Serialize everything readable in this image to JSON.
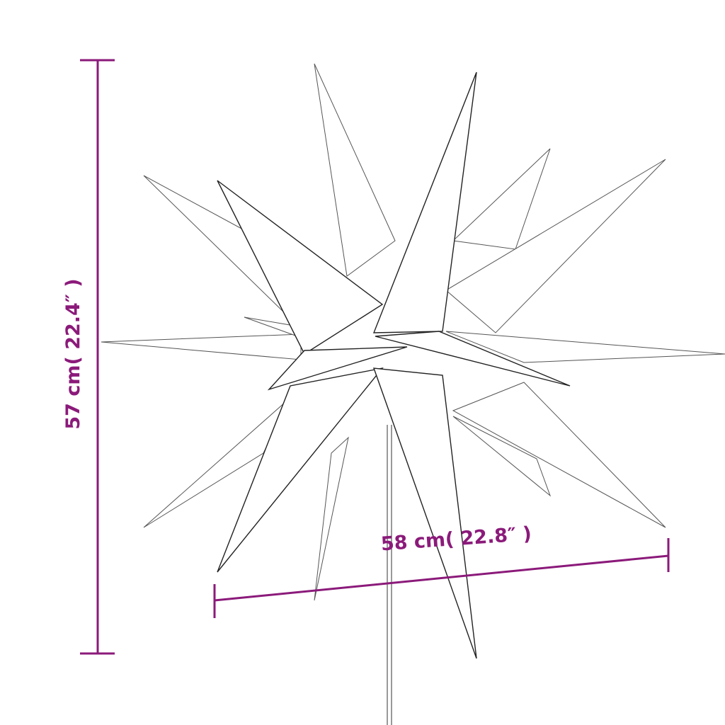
{
  "dimensions": {
    "height_label": "57 cm( 22.4″ )",
    "width_label": "58 cm( 22.8″ )"
  },
  "colors": {
    "dimension": "#8b1a7a",
    "outline": "#222222"
  }
}
